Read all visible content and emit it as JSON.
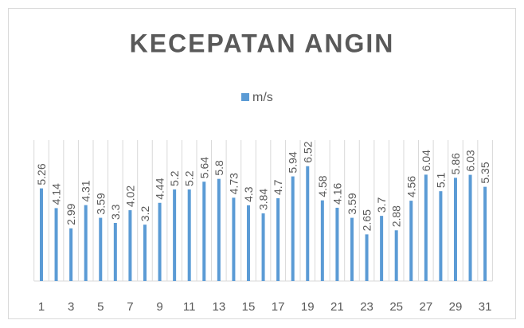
{
  "chart_data": {
    "type": "bar",
    "title": "KECEPATAN ANGIN",
    "categories": [
      1,
      null,
      3,
      null,
      5,
      null,
      7,
      null,
      9,
      null,
      11,
      null,
      13,
      null,
      15,
      null,
      17,
      null,
      19,
      null,
      21,
      null,
      23,
      null,
      25,
      null,
      27,
      null,
      29,
      null,
      31
    ],
    "series": [
      {
        "name": "m/s",
        "color": "#5b9bd5",
        "values": [
          5.26,
          4.14,
          2.99,
          4.31,
          3.59,
          3.3,
          4.02,
          3.2,
          4.44,
          5.2,
          5.2,
          5.64,
          5.8,
          4.73,
          4.3,
          3.84,
          4.7,
          5.94,
          6.52,
          4.58,
          4.16,
          3.59,
          2.65,
          3.7,
          2.88,
          4.56,
          6.04,
          5.1,
          5.86,
          6.03,
          5.35
        ]
      }
    ],
    "ylim": [
      0,
      8
    ],
    "legend": "top",
    "grid": true
  }
}
